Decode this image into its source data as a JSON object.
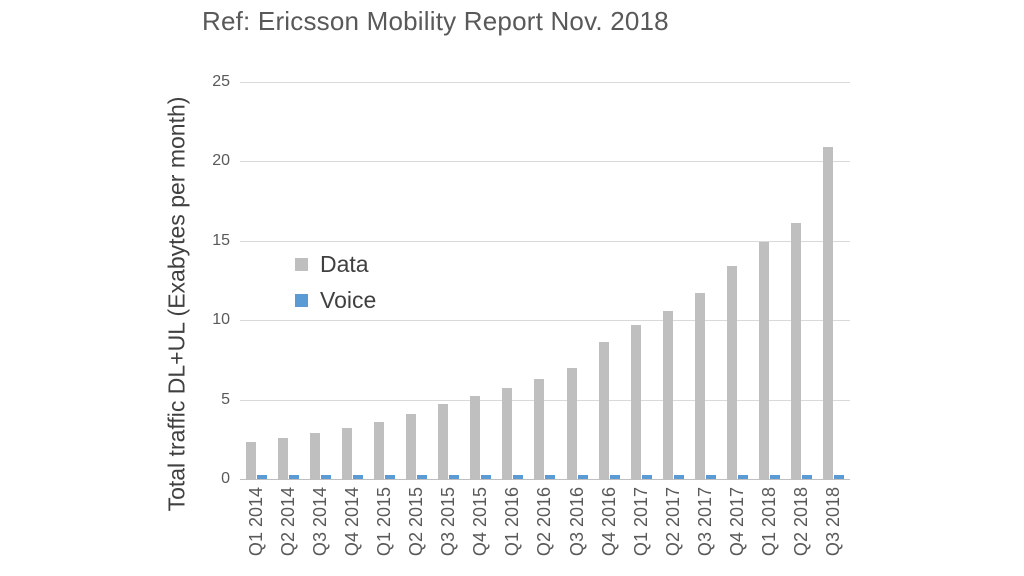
{
  "title": "Ref: Ericsson Mobility Report Nov. 2018",
  "chart_data": {
    "type": "bar",
    "title": "Ref: Ericsson Mobility Report Nov. 2018",
    "xlabel": "",
    "ylabel": "Total traffic DL+UL (Exabytes per month)",
    "categories": [
      "Q1 2014",
      "Q2 2014",
      "Q3 2014",
      "Q4 2014",
      "Q1 2015",
      "Q2 2015",
      "Q3 2015",
      "Q4 2015",
      "Q1 2016",
      "Q2 2016",
      "Q3 2016",
      "Q4 2016",
      "Q1 2017",
      "Q2 2017",
      "Q3 2017",
      "Q4 2017",
      "Q1 2018",
      "Q2 2018",
      "Q3 2018"
    ],
    "series": [
      {
        "name": "Data",
        "color": "#BFBFBF",
        "values": [
          2.3,
          2.6,
          2.9,
          3.2,
          3.6,
          4.1,
          4.7,
          5.2,
          5.7,
          6.3,
          7.0,
          8.6,
          9.7,
          10.6,
          11.7,
          13.4,
          14.9,
          16.1,
          20.9
        ]
      },
      {
        "name": "Voice",
        "color": "#5B9BD5",
        "values": [
          0.25,
          0.25,
          0.25,
          0.25,
          0.25,
          0.25,
          0.25,
          0.25,
          0.25,
          0.25,
          0.25,
          0.25,
          0.25,
          0.25,
          0.25,
          0.25,
          0.25,
          0.25,
          0.25
        ]
      }
    ],
    "ylim": [
      0,
      25
    ],
    "yticks": [
      0,
      5,
      10,
      15,
      20,
      25
    ],
    "grid": true,
    "legend_position": "inside-left",
    "legend": [
      "Data",
      "Voice"
    ]
  },
  "colors": {
    "title_text": "#595959",
    "axis_text": "#595959",
    "legend_text": "#404040",
    "gridline": "#D9D9D9",
    "axis_line": "#BFBFBF",
    "data_bar": "#BFBFBF",
    "voice_bar": "#5B9BD5"
  }
}
